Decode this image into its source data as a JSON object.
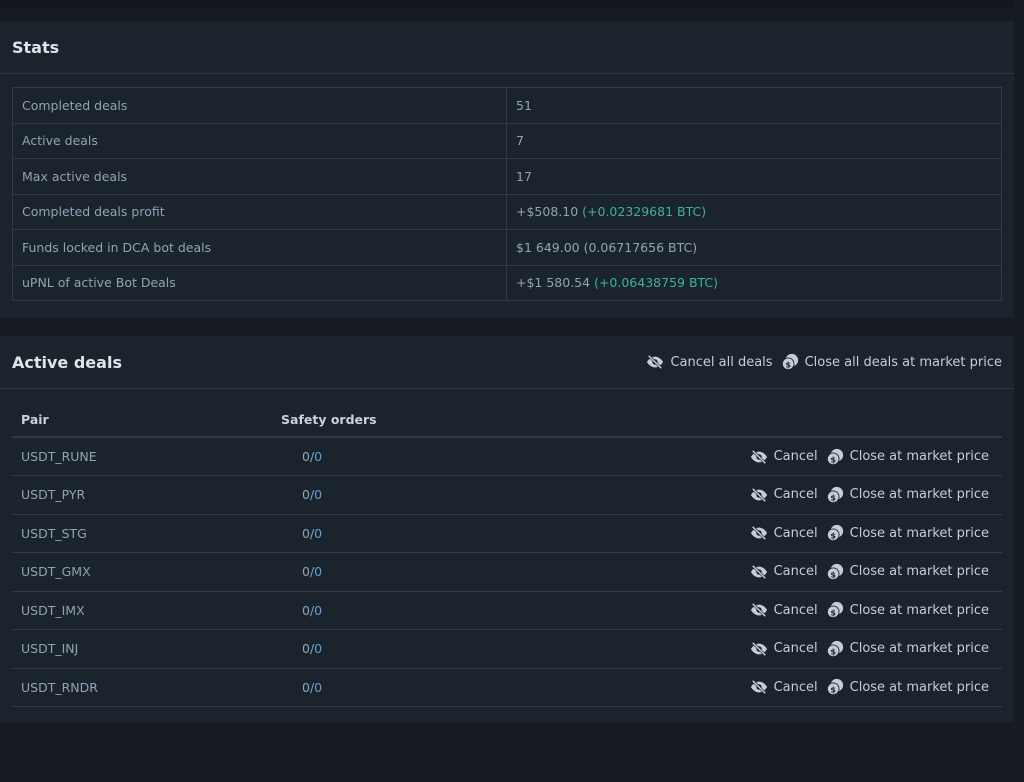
{
  "stats": {
    "title": "Stats",
    "rows": [
      {
        "label": "Completed deals",
        "value": "51",
        "extra": ""
      },
      {
        "label": "Active deals",
        "value": "7",
        "extra": ""
      },
      {
        "label": "Max active deals",
        "value": "17",
        "extra": ""
      },
      {
        "label": "Completed deals profit",
        "value": "+$508.10 ",
        "extra": "(+0.02329681 BTC)"
      },
      {
        "label": "Funds locked in DCA bot deals",
        "value": "$1 649.00 (0.06717656 BTC)",
        "extra": ""
      },
      {
        "label": "uPNL of active Bot Deals",
        "value": "+$1 580.54 ",
        "extra": "(+0.06438759 BTC)"
      }
    ]
  },
  "active": {
    "title": "Active deals",
    "cancel_all": "Cancel all deals",
    "close_all": "Close all deals at market price",
    "columns": {
      "pair": "Pair",
      "safety": "Safety orders"
    },
    "cancel": "Cancel",
    "close": "Close at market price",
    "rows": [
      {
        "pair": "USDT_RUNE",
        "done": "0/",
        "max": "0"
      },
      {
        "pair": "USDT_PYR",
        "done": "0/",
        "max": "0"
      },
      {
        "pair": "USDT_STG",
        "done": "0/",
        "max": "0"
      },
      {
        "pair": "USDT_GMX",
        "done": "0/",
        "max": "0"
      },
      {
        "pair": "USDT_IMX",
        "done": "0/",
        "max": "0"
      },
      {
        "pair": "USDT_INJ",
        "done": "0/",
        "max": "0"
      },
      {
        "pair": "USDT_RNDR",
        "done": "0/",
        "max": "0"
      }
    ]
  },
  "colors": {
    "positive": "#3bb39a",
    "link": "#5c9fe0"
  }
}
